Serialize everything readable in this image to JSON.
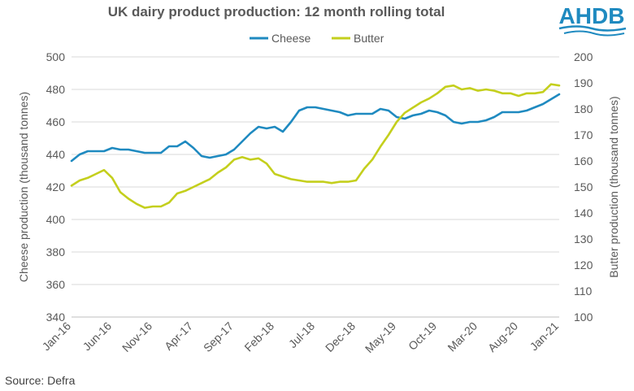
{
  "logo_text": "AHDB",
  "source": "Source:  Defra",
  "colors": {
    "cheese": "#1f8ac0",
    "butter": "#c4cf1d",
    "logo": "#1f8ac0",
    "text": "#595959"
  },
  "chart_data": {
    "type": "line",
    "title": "UK dairy product production: 12 month rolling total",
    "legend_position": "top-center",
    "grid": true,
    "x_ticks": [
      "Jan-16",
      "Jun-16",
      "Nov-16",
      "Apr-17",
      "Sep-17",
      "Feb-18",
      "Jul-18",
      "Dec-18",
      "May-19",
      "Oct-19",
      "Mar-20",
      "Aug-20",
      "Jan-21"
    ],
    "y_left": {
      "label": "Cheese production (thousand tonnes)",
      "min": 340,
      "max": 500,
      "step": 20
    },
    "y_right": {
      "label": "Butter production (thousand tonnes)",
      "min": 100,
      "max": 200,
      "step": 10
    },
    "series": [
      {
        "name": "Cheese",
        "axis": "left",
        "color": "#1f8ac0",
        "values": [
          436,
          440,
          442,
          442,
          442,
          444,
          443,
          443,
          442,
          441,
          441,
          441,
          445,
          445,
          448,
          444,
          439,
          438,
          439,
          440,
          443,
          448,
          453,
          457,
          456,
          457,
          454,
          460,
          467,
          469,
          469,
          468,
          467,
          466,
          464,
          465,
          465,
          465,
          468,
          467,
          463,
          462,
          464,
          465,
          467,
          466,
          464,
          460,
          459,
          460,
          460,
          461,
          463,
          466,
          466,
          466,
          467,
          469,
          471,
          474,
          477
        ]
      },
      {
        "name": "Butter",
        "axis": "right",
        "color": "#c4cf1d",
        "values": [
          150.5,
          152.5,
          153.5,
          155,
          156.5,
          153.5,
          148,
          145.5,
          143.5,
          142,
          142.5,
          142.5,
          144,
          147.5,
          148.5,
          150,
          151.5,
          153,
          155.5,
          157.5,
          160.5,
          161.5,
          160.5,
          161,
          159,
          155,
          154,
          153,
          152.5,
          152,
          152,
          152,
          151.5,
          152,
          152,
          152.5,
          157,
          160.5,
          165.5,
          170,
          175,
          178.5,
          180.5,
          182.5,
          184,
          186,
          188.5,
          189,
          187.5,
          188,
          187,
          187.5,
          187,
          186,
          186,
          185,
          186,
          186,
          186.5,
          189.5,
          189
        ]
      }
    ]
  }
}
